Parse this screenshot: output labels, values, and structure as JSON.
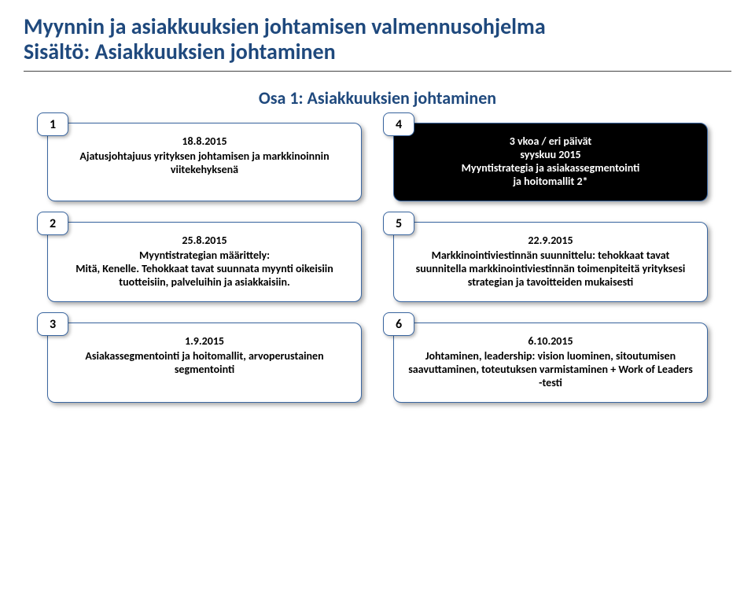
{
  "title_line1": "Myynnin ja asiakkuuksien johtamisen valmennusohjelma",
  "title_line2": "Sisältö: Asiakkuuksien johtaminen",
  "section_heading": "Osa 1: Asiakkuuksien johtaminen",
  "cards": {
    "c1": {
      "num": "1",
      "date": "18.8.2015",
      "body": "Ajatusjohtajuus yrityksen johtamisen ja markkinoinnin viitekehyksenä"
    },
    "c4": {
      "num": "4",
      "line1": "3 vkoa / eri päivät",
      "line2": "syyskuu 2015",
      "line3": "Myyntistrategia ja asiakassegmentointi",
      "line4": "ja hoitomallit 2*"
    },
    "c2": {
      "num": "2",
      "date": "25.8.2015",
      "body": "Myyntistrategian määrittely:\nMitä, Kenelle. Tehokkaat tavat suunnata myynti oikeisiin tuotteisiin, palveluihin ja asiakkaisiin."
    },
    "c5": {
      "num": "5",
      "date": "22.9.2015",
      "body": "Markkinointiviestinnän suunnittelu: tehokkaat tavat suunnitella markkinointiviestinnän toimenpiteitä yrityksesi strategian ja tavoitteiden mukaisesti"
    },
    "c3": {
      "num": "3",
      "date": "1.9.2015",
      "body": "Asiakassegmentointi ja hoitomallit, arvoperustainen segmentointi"
    },
    "c6": {
      "num": "6",
      "date": "6.10.2015",
      "body": "Johtaminen, leadership: vision luominen, sitoutumisen saavuttaminen, toteutuksen varmistaminen + Work of Leaders -testi"
    }
  },
  "colors": {
    "title": "#1f497d",
    "card_border": "#3a66a0",
    "dark_bg": "#000000"
  }
}
